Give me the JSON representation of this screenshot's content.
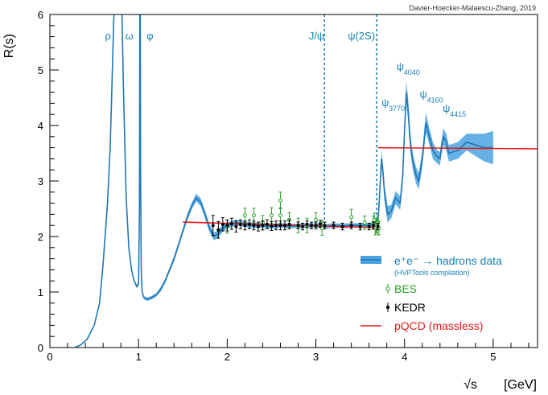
{
  "chart_data": {
    "type": "line",
    "credit": "Davier-Hoecker-Malaescu-Zhang, 2019",
    "ylabel": "R(s)",
    "xlabel_sqrt": "√s",
    "xlabel_unit": "[GeV]",
    "xlim": [
      0,
      5.5
    ],
    "ylim": [
      0,
      6
    ],
    "x_ticks": [
      "0",
      "1",
      "2",
      "3",
      "4",
      "5"
    ],
    "y_ticks": [
      "0",
      "1",
      "2",
      "3",
      "4",
      "5",
      "6"
    ],
    "colors": {
      "data": "#1f77b4",
      "band": "#4aa3e0",
      "pqcd": "#e31a1c",
      "bes": "#2ca02c",
      "kedr": "#000000",
      "annot": "#1a80b6"
    },
    "resonances": [
      {
        "name": "ρ",
        "x": 0.62,
        "y": 5.55
      },
      {
        "name": "ω",
        "x": 0.85,
        "y": 5.55
      },
      {
        "name": "φ",
        "x": 1.09,
        "y": 5.55
      },
      {
        "name": "J/ψ",
        "x": 2.92,
        "y": 5.55
      },
      {
        "name": "ψ(2S)",
        "x": 3.36,
        "y": 5.55
      }
    ],
    "charmonium_labels": [
      {
        "base": "ψ",
        "sub": "3770",
        "x": 3.74,
        "y": 4.35
      },
      {
        "base": "ψ",
        "sub": "4040",
        "x": 3.91,
        "y": 5.0
      },
      {
        "base": "ψ",
        "sub": "4160",
        "x": 4.17,
        "y": 4.5
      },
      {
        "base": "ψ",
        "sub": "4415",
        "x": 4.43,
        "y": 4.25
      }
    ],
    "vlines": [
      3.097,
      3.686
    ],
    "data_curve": {
      "x": [
        0.28,
        0.35,
        0.42,
        0.5,
        0.56,
        0.6,
        0.65,
        0.68,
        0.7,
        0.72,
        0.74,
        0.755,
        0.77,
        0.78,
        0.79,
        0.8,
        0.81,
        0.83,
        0.86,
        0.89,
        0.92,
        0.95,
        0.98,
        1.0,
        1.01,
        1.015,
        1.019,
        1.023,
        1.03,
        1.04,
        1.06,
        1.08,
        1.1,
        1.15,
        1.2,
        1.25,
        1.3,
        1.35,
        1.4,
        1.45,
        1.5,
        1.55,
        1.6,
        1.65,
        1.7,
        1.75,
        1.8,
        1.85,
        1.9,
        1.95,
        2.0,
        2.1,
        2.2,
        2.3,
        2.4,
        2.5,
        2.6,
        2.7,
        2.8,
        2.9,
        3.0,
        3.1,
        3.2,
        3.3,
        3.4,
        3.5,
        3.6,
        3.65,
        3.7,
        3.72,
        3.74,
        3.76,
        3.773,
        3.79,
        3.81,
        3.85,
        3.9,
        3.95,
        3.98,
        4.0,
        4.02,
        4.04,
        4.06,
        4.08,
        4.1,
        4.13,
        4.16,
        4.2,
        4.24,
        4.28,
        4.32,
        4.36,
        4.4,
        4.415,
        4.44,
        4.47,
        4.5,
        4.6,
        4.7,
        4.8,
        4.9,
        5.0
      ],
      "y": [
        0.0,
        0.05,
        0.15,
        0.4,
        0.8,
        1.5,
        2.6,
        3.6,
        4.7,
        5.9,
        6.3,
        6.3,
        6.3,
        6.3,
        6.3,
        6.3,
        6.3,
        4.6,
        2.7,
        1.8,
        1.4,
        1.2,
        1.1,
        1.15,
        2.5,
        6.3,
        6.3,
        3.2,
        1.4,
        1.0,
        0.9,
        0.88,
        0.87,
        0.9,
        0.95,
        1.05,
        1.2,
        1.4,
        1.6,
        1.85,
        2.1,
        2.35,
        2.55,
        2.7,
        2.62,
        2.4,
        2.15,
        2.0,
        2.05,
        2.15,
        2.2,
        2.25,
        2.22,
        2.2,
        2.2,
        2.18,
        2.2,
        2.19,
        2.19,
        2.2,
        2.2,
        2.18,
        2.2,
        2.19,
        2.2,
        2.2,
        2.2,
        2.22,
        2.25,
        2.8,
        3.4,
        3.1,
        2.8,
        2.6,
        2.4,
        2.45,
        2.7,
        2.6,
        3.1,
        3.9,
        4.6,
        4.3,
        3.8,
        3.5,
        3.3,
        3.1,
        3.0,
        3.4,
        4.05,
        3.8,
        3.55,
        3.45,
        3.4,
        3.6,
        3.8,
        3.7,
        3.5,
        3.55,
        3.7,
        3.65,
        3.6,
        3.6
      ],
      "band_halfwidth": [
        0.0,
        0.01,
        0.01,
        0.01,
        0.02,
        0.03,
        0.05,
        0.05,
        0.06,
        0.06,
        0.06,
        0.06,
        0.06,
        0.06,
        0.06,
        0.06,
        0.06,
        0.06,
        0.05,
        0.04,
        0.04,
        0.03,
        0.03,
        0.03,
        0.03,
        0.03,
        0.03,
        0.03,
        0.03,
        0.03,
        0.03,
        0.03,
        0.03,
        0.03,
        0.03,
        0.04,
        0.04,
        0.04,
        0.05,
        0.05,
        0.05,
        0.06,
        0.06,
        0.07,
        0.07,
        0.07,
        0.07,
        0.07,
        0.07,
        0.06,
        0.06,
        0.05,
        0.05,
        0.05,
        0.04,
        0.04,
        0.04,
        0.04,
        0.04,
        0.04,
        0.04,
        0.04,
        0.04,
        0.04,
        0.04,
        0.04,
        0.04,
        0.04,
        0.05,
        0.15,
        0.15,
        0.15,
        0.15,
        0.15,
        0.15,
        0.12,
        0.12,
        0.12,
        0.15,
        0.2,
        0.2,
        0.2,
        0.18,
        0.15,
        0.15,
        0.15,
        0.15,
        0.15,
        0.18,
        0.15,
        0.15,
        0.12,
        0.12,
        0.12,
        0.15,
        0.15,
        0.15,
        0.15,
        0.15,
        0.2,
        0.25,
        0.3
      ]
    },
    "pqcd": {
      "low": {
        "x": [
          1.5,
          3.7
        ],
        "y": [
          2.26,
          2.16
        ]
      },
      "high": {
        "x": [
          3.7,
          5.5
        ],
        "y": [
          3.6,
          3.58
        ]
      }
    },
    "bes": {
      "x": [
        2.0,
        2.2,
        2.3,
        2.4,
        2.5,
        2.6,
        2.6,
        2.7,
        2.8,
        2.9,
        3.0,
        3.07,
        3.4,
        3.55,
        3.65,
        3.66,
        3.67,
        3.68,
        3.69,
        3.7,
        3.71
      ],
      "y": [
        2.18,
        2.38,
        2.38,
        2.25,
        2.38,
        2.65,
        2.38,
        2.3,
        2.2,
        2.2,
        2.3,
        2.15,
        2.35,
        2.25,
        2.25,
        2.3,
        2.15,
        2.2,
        2.18,
        2.25,
        2.15
      ],
      "err": [
        0.12,
        0.13,
        0.13,
        0.13,
        0.14,
        0.15,
        0.14,
        0.13,
        0.13,
        0.13,
        0.13,
        0.13,
        0.14,
        0.12,
        0.12,
        0.12,
        0.12,
        0.12,
        0.12,
        0.12,
        0.12
      ]
    },
    "kedr": {
      "x": [
        1.84,
        1.9,
        1.95,
        2.0,
        2.05,
        2.1,
        2.15,
        2.2,
        2.25,
        2.3,
        2.35,
        2.4,
        2.45,
        2.5,
        2.55,
        2.6,
        2.65,
        2.7,
        2.8,
        2.85,
        2.9,
        2.95,
        3.0,
        3.05,
        3.1,
        3.2,
        3.3,
        3.4,
        3.5,
        3.6,
        3.65,
        3.7
      ],
      "y": [
        2.2,
        2.12,
        2.22,
        2.2,
        2.23,
        2.18,
        2.22,
        2.2,
        2.22,
        2.2,
        2.18,
        2.2,
        2.22,
        2.19,
        2.2,
        2.2,
        2.2,
        2.22,
        2.2,
        2.18,
        2.22,
        2.2,
        2.2,
        2.23,
        2.2,
        2.2,
        2.18,
        2.2,
        2.18,
        2.18,
        2.2,
        2.18
      ],
      "err": [
        0.18,
        0.15,
        0.12,
        0.1,
        0.1,
        0.1,
        0.08,
        0.08,
        0.08,
        0.08,
        0.08,
        0.08,
        0.08,
        0.08,
        0.08,
        0.08,
        0.08,
        0.08,
        0.06,
        0.06,
        0.06,
        0.06,
        0.06,
        0.06,
        0.06,
        0.06,
        0.06,
        0.06,
        0.06,
        0.06,
        0.06,
        0.06
      ]
    },
    "legend": {
      "placement": "bottom-right",
      "entries": [
        {
          "key": "data",
          "label": "e⁺e⁻ → hadrons data",
          "sublabel": "(HVPTools compilation)"
        },
        {
          "key": "bes",
          "label": "BES"
        },
        {
          "key": "kedr",
          "label": "KEDR"
        },
        {
          "key": "pqcd",
          "label": "pQCD (massless)"
        }
      ]
    }
  }
}
